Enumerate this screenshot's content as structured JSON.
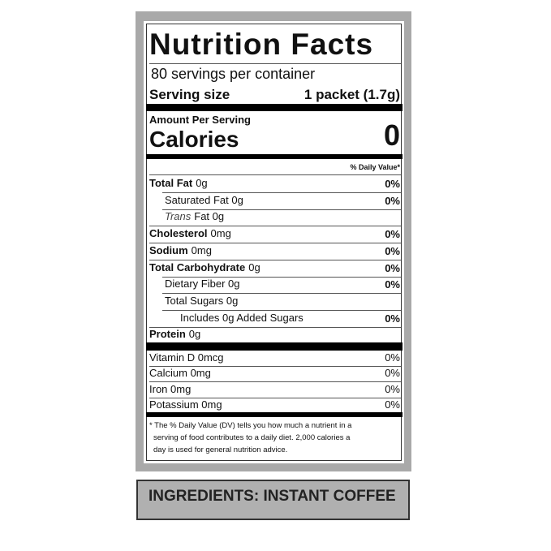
{
  "label": {
    "title": "Nutrition Facts",
    "servings": "80 servings per container",
    "serving_size_label": "Serving size",
    "serving_size_value": "1 packet (1.7g)",
    "amount_per_serving": "Amount Per Serving",
    "calories_label": "Calories",
    "calories_value": "0",
    "dv_header": "% Daily Value*",
    "nutrients": [
      {
        "bold": "Total Fat",
        "text": "0g",
        "dv": "0%"
      },
      {
        "text": "Saturated Fat 0g",
        "dv": "0%"
      },
      {
        "italic": "Trans",
        "text": "Fat 0g"
      },
      {
        "bold": "Cholesterol",
        "text": "0mg",
        "dv": "0%"
      },
      {
        "bold": "Sodium",
        "text": "0mg",
        "dv": "0%"
      },
      {
        "bold": "Total Carbohydrate",
        "text": "0g",
        "dv": "0%"
      },
      {
        "text": "Dietary Fiber 0g",
        "dv": "0%"
      },
      {
        "text": "Total Sugars 0g"
      },
      {
        "text": "Includes 0g Added Sugars",
        "dv": "0%"
      },
      {
        "bold": "Protein",
        "text": "0g"
      }
    ],
    "vitamins": [
      {
        "text": "Vitamin D 0mcg",
        "dv": "0%"
      },
      {
        "text": "Calcium 0mg",
        "dv": "0%"
      },
      {
        "text": "Iron 0mg",
        "dv": "0%"
      },
      {
        "text": "Potassium 0mg",
        "dv": "0%"
      }
    ],
    "footnote": [
      "* The % Daily Value (DV) tells you how much a nutrient in a",
      "serving of food contributes to a daily diet. 2,000 calories a",
      "day is used for general nutrition advice."
    ]
  },
  "ingredients": "INGREDIENTS: INSTANT COFFEE"
}
